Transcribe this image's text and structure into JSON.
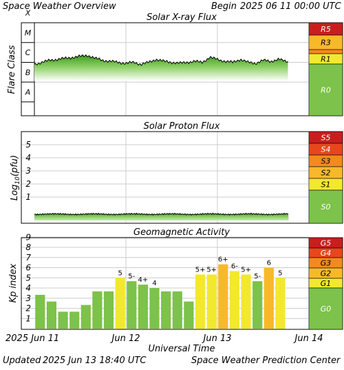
{
  "header": {
    "title": "Space Weather Overview",
    "begin_label": "Begin",
    "begin_value": "2025 06 11 00:00 UTC"
  },
  "footer": {
    "updated_label": "Updated",
    "updated_value": "2025 Jun 13 18:40 UTC",
    "credit": "Space Weather Prediction Center"
  },
  "time_axis": {
    "label": "Universal Time",
    "ticks": [
      "2025  Jun 11",
      "Jun 12",
      "Jun 13",
      "Jun 14"
    ]
  },
  "scale_colors": {
    "none": "#7dc24a",
    "minor": "#f2e82e",
    "moderate": "#f7b92a",
    "strong": "#f28a1e",
    "severe": "#e8461c",
    "extreme": "#c81e1e"
  },
  "chart_data": [
    {
      "type": "area",
      "title": "Solar X-ray Flux",
      "ylabel": "Flare Class",
      "yticks": [
        "A",
        "B",
        "C",
        "M",
        "X"
      ],
      "y_scale": "log10 flux (W/m²), A=1e-8 … X=1e-4",
      "x_unit": "hours since 2025-06-11 00:00 UTC",
      "xlim": [
        0,
        72
      ],
      "data_extent_hours": [
        0,
        66.7
      ],
      "x": [
        0,
        2,
        4,
        6,
        8,
        10,
        12,
        14,
        16,
        18,
        20,
        22,
        24,
        26,
        28,
        30,
        32,
        34,
        36,
        38,
        40,
        42,
        44,
        46,
        48,
        50,
        52,
        54,
        56,
        58,
        60,
        62,
        64,
        66
      ],
      "values_log10": [
        -6.1,
        -6.0,
        -5.9,
        -5.85,
        -5.8,
        -5.75,
        -5.7,
        -5.65,
        -5.8,
        -5.9,
        -5.95,
        -6.0,
        -6.05,
        -6.0,
        -6.1,
        -6.0,
        -5.85,
        -5.95,
        -6.0,
        -6.05,
        -6.0,
        -5.95,
        -6.0,
        -5.75,
        -5.85,
        -5.95,
        -6.0,
        -5.85,
        -6.0,
        -6.05,
        -5.9,
        -5.95,
        -5.85,
        -5.95
      ],
      "scale_labels": [
        {
          "label": "R5",
          "level": "extreme"
        },
        {
          "label": "R3",
          "level": "moderate"
        },
        {
          "label": "R1",
          "level": "minor"
        },
        {
          "label": "R0",
          "level": "none"
        }
      ]
    },
    {
      "type": "area",
      "title": "Solar Proton Flux",
      "ylabel": "Log10(pfu)",
      "ylabel_parts": {
        "base": "Log",
        "sub": "10",
        "rest": "(pfu)"
      },
      "yticks": [
        "1",
        "2",
        "3",
        "4",
        "5"
      ],
      "ylim": [
        -1,
        6
      ],
      "x_unit": "hours since 2025-06-11 00:00 UTC",
      "xlim": [
        0,
        72
      ],
      "data_extent_hours": [
        0,
        66.7
      ],
      "baseline_log10": -0.3,
      "scale_labels": [
        {
          "label": "S5",
          "level": "extreme"
        },
        {
          "label": "S4",
          "level": "severe"
        },
        {
          "label": "S3",
          "level": "strong"
        },
        {
          "label": "S2",
          "level": "moderate"
        },
        {
          "label": "S1",
          "level": "minor"
        },
        {
          "label": "S0",
          "level": "none"
        }
      ]
    },
    {
      "type": "bar",
      "title": "Geomagnetic Activity",
      "ylabel": "Kp index",
      "yticks": [
        "1",
        "2",
        "3",
        "4",
        "5",
        "6",
        "7",
        "8",
        "9"
      ],
      "ylim": [
        0,
        9
      ],
      "x_unit": "3-hour periods beginning 2025-06-11 00:00 UTC",
      "values": [
        3.33,
        2.67,
        1.67,
        1.67,
        2.33,
        3.67,
        3.67,
        5.0,
        4.67,
        4.33,
        4.0,
        3.67,
        3.67,
        2.67,
        5.33,
        5.33,
        6.33,
        5.67,
        5.33,
        4.67,
        6.0,
        5.0
      ],
      "bar_labels": [
        "",
        "",
        "",
        "",
        "",
        "",
        "",
        "5",
        "5-",
        "4+",
        "4",
        "",
        "",
        "",
        "5+",
        "5+",
        "6+",
        "6-",
        "5+",
        "5-",
        "6",
        "5"
      ],
      "scale_labels": [
        {
          "label": "G5",
          "level": "extreme"
        },
        {
          "label": "G4",
          "level": "severe"
        },
        {
          "label": "G3",
          "level": "strong"
        },
        {
          "label": "G2",
          "level": "moderate"
        },
        {
          "label": "G1",
          "level": "minor"
        },
        {
          "label": "G0",
          "level": "none"
        }
      ]
    }
  ]
}
